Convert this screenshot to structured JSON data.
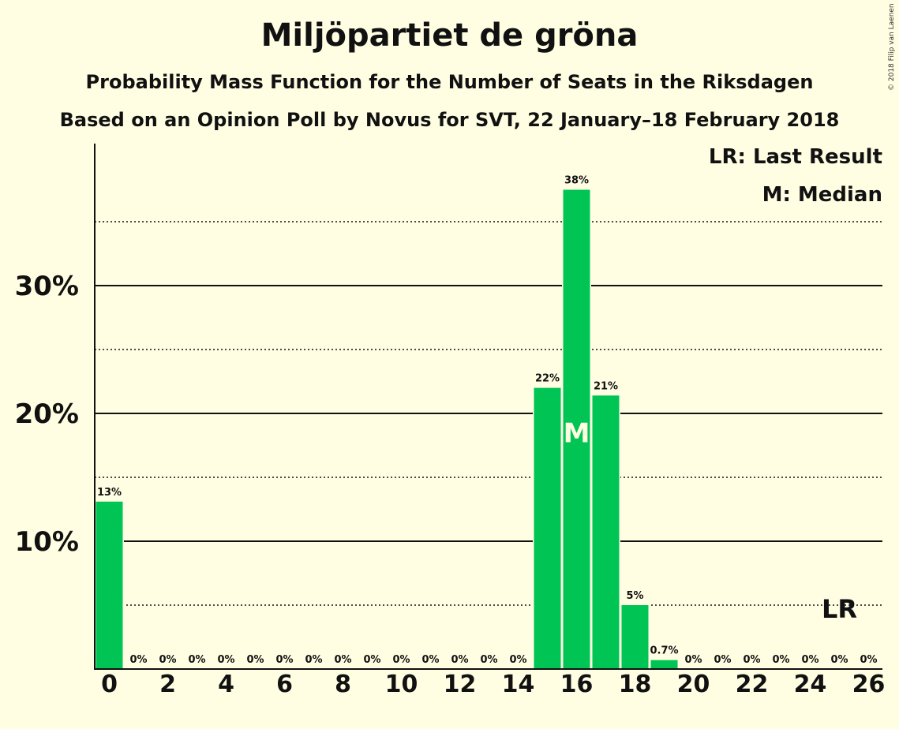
{
  "chart_data": {
    "type": "bar",
    "title": "Miljöpartiet de gröna",
    "subtitle": "Probability Mass Function for the Number of Seats in the Riksdagen",
    "subtitle2": "Based on an Opinion Poll by Novus for SVT, 22 January–18 February 2018",
    "copyright": "© 2018 Filip van Laenen",
    "legend": [
      "LR: Last Result",
      "M: Median"
    ],
    "legend_position": "top-right",
    "x": [
      0,
      1,
      2,
      3,
      4,
      5,
      6,
      7,
      8,
      9,
      10,
      11,
      12,
      13,
      14,
      15,
      16,
      17,
      18,
      19,
      20,
      21,
      22,
      23,
      24,
      25,
      26
    ],
    "values": [
      13.1,
      0,
      0,
      0,
      0,
      0,
      0,
      0,
      0,
      0,
      0,
      0,
      0,
      0,
      0,
      22.0,
      37.5,
      21.4,
      5.0,
      0.7,
      0,
      0,
      0,
      0,
      0,
      0,
      0
    ],
    "labels": [
      "13%",
      "0%",
      "0%",
      "0%",
      "0%",
      "0%",
      "0%",
      "0%",
      "0%",
      "0%",
      "0%",
      "0%",
      "0%",
      "0%",
      "0%",
      "22%",
      "38%",
      "21%",
      "5%",
      "0.7%",
      "0%",
      "0%",
      "0%",
      "0%",
      "0%",
      "0%",
      "0%"
    ],
    "x_tick_labels": [
      "0",
      "2",
      "4",
      "6",
      "8",
      "10",
      "12",
      "14",
      "16",
      "18",
      "20",
      "22",
      "24",
      "26"
    ],
    "y_tick_labels": [
      "10%",
      "20%",
      "30%"
    ],
    "ylim": [
      0,
      41
    ],
    "median": 16,
    "median_label": "M",
    "last_result": 25,
    "last_result_label": "LR",
    "colors": {
      "bar": "#00C454",
      "background": "#FFFEE3",
      "axis": "#111111"
    }
  }
}
